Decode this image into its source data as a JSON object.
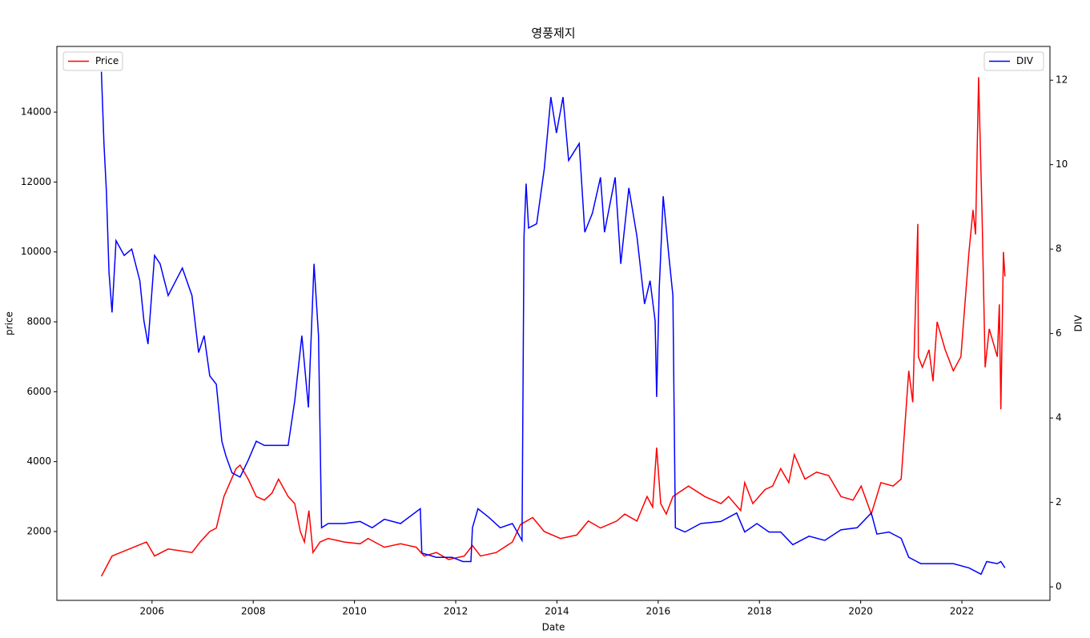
{
  "chart_data": {
    "type": "line",
    "title": "영풍제지",
    "x_label": "Date",
    "y_label": "price",
    "y2_label": "DIV",
    "xlim": [
      2004.12,
      2023.74
    ],
    "xticks": [
      2006,
      2008,
      2010,
      2012,
      2014,
      2016,
      2018,
      2020,
      2022
    ],
    "ylim": [
      30,
      15880
    ],
    "yticks": [
      2000,
      4000,
      6000,
      8000,
      10000,
      12000,
      14000
    ],
    "y2lim": [
      -0.32,
      12.8
    ],
    "y2ticks": [
      0,
      2,
      4,
      6,
      8,
      10,
      12
    ],
    "legend": "upper left",
    "legend2": "upper right",
    "series": [
      {
        "name": "Price",
        "color": "#ff0000",
        "axis": "y",
        "x": [
          2005.0,
          2005.21,
          2005.89,
          2006.05,
          2006.32,
          2006.79,
          2006.95,
          2007.14,
          2007.27,
          2007.42,
          2007.66,
          2007.74,
          2007.9,
          2008.06,
          2008.22,
          2008.37,
          2008.5,
          2008.69,
          2008.82,
          2008.93,
          2009.01,
          2009.1,
          2009.18,
          2009.32,
          2009.48,
          2009.8,
          2010.11,
          2010.27,
          2010.59,
          2010.91,
          2011.22,
          2011.38,
          2011.62,
          2011.86,
          2012.17,
          2012.33,
          2012.49,
          2012.8,
          2013.12,
          2013.28,
          2013.52,
          2013.75,
          2014.07,
          2014.39,
          2014.62,
          2014.86,
          2015.18,
          2015.34,
          2015.58,
          2015.78,
          2015.89,
          2015.97,
          2016.05,
          2016.16,
          2016.29,
          2016.6,
          2016.92,
          2017.24,
          2017.39,
          2017.63,
          2017.71,
          2017.87,
          2018.11,
          2018.26,
          2018.42,
          2018.58,
          2018.69,
          2018.9,
          2019.13,
          2019.37,
          2019.61,
          2019.85,
          2020.01,
          2020.21,
          2020.4,
          2020.64,
          2020.8,
          2020.95,
          2021.03,
          2021.13,
          2021.14,
          2021.22,
          2021.35,
          2021.43,
          2021.51,
          2021.67,
          2021.83,
          2021.98,
          2022.06,
          2022.14,
          2022.22,
          2022.27,
          2022.33,
          2022.4,
          2022.46,
          2022.54,
          2022.7,
          2022.74,
          2022.77,
          2022.82,
          2022.85
        ],
        "values": [
          720,
          1300,
          1700,
          1300,
          1500,
          1400,
          1700,
          2000,
          2100,
          3000,
          3800,
          3900,
          3500,
          3000,
          2900,
          3100,
          3500,
          3000,
          2800,
          2000,
          1700,
          2600,
          1400,
          1700,
          1800,
          1700,
          1650,
          1800,
          1550,
          1650,
          1550,
          1300,
          1400,
          1200,
          1300,
          1600,
          1300,
          1400,
          1700,
          2200,
          2400,
          2000,
          1800,
          1900,
          2300,
          2100,
          2300,
          2500,
          2300,
          3000,
          2700,
          4400,
          2800,
          2500,
          3000,
          3300,
          3000,
          2800,
          3000,
          2600,
          3400,
          2800,
          3200,
          3300,
          3800,
          3400,
          4200,
          3500,
          3700,
          3600,
          3000,
          2900,
          3300,
          2500,
          3400,
          3300,
          3500,
          6600,
          5700,
          10800,
          7000,
          6700,
          7200,
          6300,
          8000,
          7200,
          6600,
          7000,
          8500,
          10000,
          11200,
          10500,
          15000,
          11000,
          6700,
          7800,
          7000,
          8500,
          5500,
          10000,
          9300
        ]
      },
      {
        "name": "DIV",
        "color": "#0000ff",
        "axis": "y2",
        "x": [
          2005.0,
          2005.05,
          2005.1,
          2005.15,
          2005.21,
          2005.29,
          2005.45,
          2005.6,
          2005.76,
          2005.84,
          2005.92,
          2006.05,
          2006.16,
          2006.32,
          2006.47,
          2006.6,
          2006.79,
          2006.92,
          2007.03,
          2007.14,
          2007.27,
          2007.38,
          2007.46,
          2007.58,
          2007.74,
          2007.9,
          2008.06,
          2008.22,
          2008.45,
          2008.69,
          2008.82,
          2008.96,
          2009.09,
          2009.2,
          2009.29,
          2009.35,
          2009.48,
          2009.8,
          2010.11,
          2010.35,
          2010.59,
          2010.91,
          2011.3,
          2011.33,
          2011.62,
          2011.93,
          2012.14,
          2012.3,
          2012.33,
          2012.44,
          2012.65,
          2012.88,
          2013.12,
          2013.31,
          2013.35,
          2013.39,
          2013.44,
          2013.6,
          2013.75,
          2013.88,
          2013.99,
          2014.12,
          2014.23,
          2014.44,
          2014.55,
          2014.7,
          2014.86,
          2014.94,
          2015.15,
          2015.26,
          2015.42,
          2015.58,
          2015.73,
          2015.84,
          2015.94,
          2015.97,
          2016.02,
          2016.1,
          2016.21,
          2016.29,
          2016.34,
          2016.53,
          2016.84,
          2017.24,
          2017.55,
          2017.71,
          2017.95,
          2018.19,
          2018.42,
          2018.66,
          2018.98,
          2019.29,
          2019.61,
          2019.93,
          2020.21,
          2020.32,
          2020.56,
          2020.8,
          2020.95,
          2021.19,
          2021.51,
          2021.83,
          2022.14,
          2022.38,
          2022.49,
          2022.7,
          2022.77,
          2022.85
        ],
        "values": [
          12.2,
          10.5,
          9.35,
          7.45,
          6.5,
          8.2,
          7.85,
          8.0,
          7.25,
          6.3,
          5.75,
          7.85,
          7.65,
          6.9,
          7.25,
          7.55,
          6.9,
          5.55,
          5.95,
          5.0,
          4.8,
          3.45,
          3.1,
          2.7,
          2.6,
          3.0,
          3.45,
          3.35,
          3.35,
          3.35,
          4.4,
          5.95,
          4.25,
          7.65,
          5.95,
          1.4,
          1.5,
          1.5,
          1.55,
          1.4,
          1.6,
          1.5,
          1.85,
          0.8,
          0.7,
          0.7,
          0.6,
          0.6,
          1.4,
          1.85,
          1.65,
          1.4,
          1.5,
          1.1,
          8.3,
          9.55,
          8.5,
          8.6,
          9.9,
          11.6,
          10.75,
          11.6,
          10.1,
          10.5,
          8.4,
          8.85,
          9.7,
          8.4,
          9.7,
          7.65,
          9.45,
          8.3,
          6.7,
          7.25,
          6.3,
          4.5,
          7.05,
          9.25,
          7.85,
          6.9,
          1.4,
          1.3,
          1.5,
          1.55,
          1.75,
          1.3,
          1.5,
          1.3,
          1.3,
          1.0,
          1.2,
          1.1,
          1.35,
          1.4,
          1.75,
          1.25,
          1.3,
          1.15,
          0.7,
          0.55,
          0.55,
          0.55,
          0.45,
          0.3,
          0.6,
          0.55,
          0.6,
          0.45
        ]
      }
    ]
  }
}
